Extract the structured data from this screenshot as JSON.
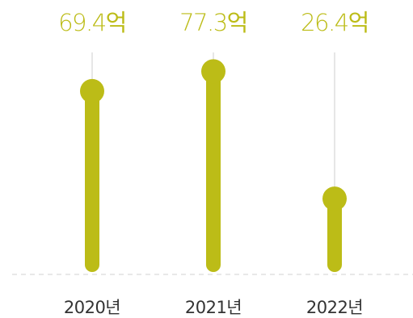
{
  "chart_data": {
    "type": "bar",
    "categories": [
      "2020년",
      "2021년",
      "2022년"
    ],
    "values": [
      69.4,
      77.3,
      26.4
    ],
    "value_labels": [
      "69.4억",
      "77.3억",
      "26.4억"
    ],
    "unit": "억",
    "ylim": [
      0,
      83
    ],
    "grid": false,
    "colors": {
      "bar": "#bcbc17",
      "value_text": "#bcbc17",
      "guide_line": "#e6e6e6",
      "baseline": "#e0e0e0",
      "category_text": "#333333"
    }
  }
}
